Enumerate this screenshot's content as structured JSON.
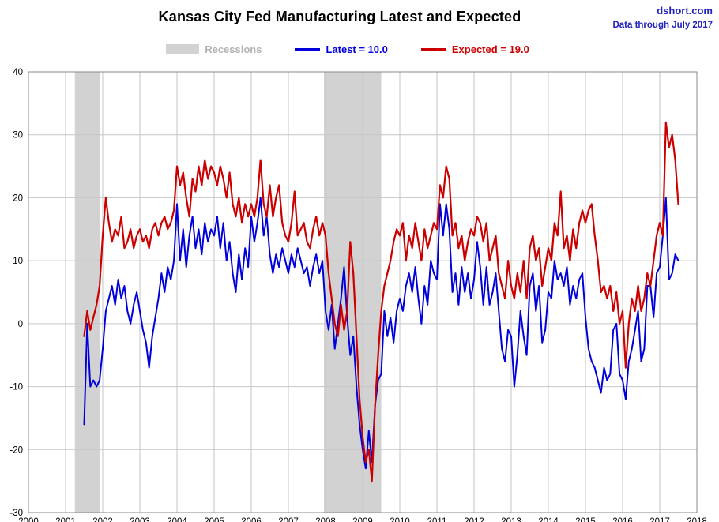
{
  "header": {
    "title": "Kansas City Fed Manufacturing Latest and Expected",
    "source": "dshort.com",
    "data_through": "Data through July 2017"
  },
  "legend": {
    "recessions_label": "Recessions",
    "latest_label": "Latest = 10.0",
    "expected_label": "Expected = 19.0"
  },
  "colors": {
    "latest": "#0000dd",
    "expected": "#cc0000",
    "recession": "#d2d2d2",
    "grid": "#c6c6c6",
    "plot_border": "#888888",
    "tick_text": "#000000"
  },
  "chart_data": {
    "type": "line",
    "title": "Kansas City Fed Manufacturing Latest and Expected",
    "xlabel": "",
    "ylabel": "",
    "xlim": [
      2000,
      2018
    ],
    "ylim": [
      -30,
      40
    ],
    "x_ticks": [
      2000,
      2001,
      2002,
      2003,
      2004,
      2005,
      2006,
      2007,
      2008,
      2009,
      2010,
      2011,
      2012,
      2013,
      2014,
      2015,
      2016,
      2017,
      2018
    ],
    "y_ticks": [
      -30,
      -20,
      -10,
      0,
      10,
      20,
      30,
      40
    ],
    "grid": true,
    "legend_position": "top",
    "x_start": 2001.5,
    "x_step": 0.0833333,
    "recession_bands": [
      [
        2001.25,
        2001.9167
      ],
      [
        2007.9583,
        2009.5
      ]
    ],
    "series": [
      {
        "name": "Latest",
        "final_value": 10.0,
        "color_key": "latest",
        "values": [
          -16,
          0,
          -10,
          -9,
          -10,
          -9,
          -4,
          2,
          4,
          6,
          3,
          7,
          4,
          6,
          2,
          0,
          3,
          5,
          2,
          -1,
          -3,
          -7,
          -2,
          1,
          4,
          8,
          5,
          9,
          7,
          10,
          19,
          10,
          15,
          9,
          14,
          17,
          12,
          15,
          11,
          16,
          13,
          15,
          14,
          17,
          12,
          16,
          10,
          13,
          8,
          5,
          11,
          7,
          12,
          9,
          17,
          13,
          16,
          20,
          14,
          17,
          11,
          8,
          11,
          9,
          12,
          10,
          8,
          11,
          9,
          12,
          10,
          8,
          9,
          6,
          9,
          11,
          8,
          10,
          2,
          -1,
          3,
          -4,
          0,
          4,
          9,
          1,
          -5,
          -2,
          -10,
          -16,
          -20,
          -23,
          -17,
          -22,
          -13,
          -9,
          -8,
          2,
          -2,
          1,
          -3,
          2,
          4,
          2,
          6,
          8,
          5,
          9,
          4,
          0,
          6,
          3,
          10,
          8,
          7,
          19,
          14,
          19,
          15,
          5,
          8,
          3,
          9,
          5,
          8,
          4,
          7,
          13,
          9,
          3,
          9,
          3,
          5,
          8,
          2,
          -4,
          -6,
          -1,
          -2,
          -10,
          -5,
          2,
          -2,
          -5,
          6,
          8,
          2,
          6,
          -3,
          -1,
          5,
          4,
          10,
          7,
          8,
          6,
          9,
          3,
          6,
          4,
          7,
          8,
          1,
          -4,
          -6,
          -7,
          -9,
          -11,
          -7,
          -9,
          -8,
          -1,
          0,
          -8,
          -9,
          -12,
          -6,
          -4,
          -1,
          2,
          -6,
          -4,
          6,
          6,
          1,
          8,
          9,
          14,
          20,
          7,
          8,
          11,
          10
        ]
      },
      {
        "name": "Expected",
        "final_value": 19.0,
        "color_key": "expected",
        "values": [
          -2,
          2,
          -1,
          1,
          3,
          6,
          14,
          20,
          16,
          13,
          15,
          14,
          17,
          12,
          13,
          15,
          12,
          14,
          15,
          13,
          14,
          12,
          15,
          16,
          14,
          16,
          17,
          15,
          16,
          18,
          25,
          22,
          24,
          20,
          17,
          23,
          21,
          25,
          22,
          26,
          23,
          25,
          24,
          22,
          25,
          23,
          20,
          24,
          19,
          17,
          20,
          16,
          19,
          17,
          19,
          17,
          20,
          26,
          19,
          17,
          22,
          17,
          20,
          22,
          16,
          14,
          13,
          16,
          21,
          14,
          15,
          16,
          13,
          12,
          15,
          17,
          14,
          16,
          14,
          8,
          4,
          0,
          -2,
          3,
          -1,
          2,
          13,
          8,
          -2,
          -12,
          -18,
          -22,
          -20,
          -25,
          -13,
          -5,
          2,
          6,
          8,
          10,
          13,
          15,
          14,
          16,
          10,
          14,
          12,
          16,
          13,
          10,
          15,
          12,
          14,
          16,
          15,
          22,
          20,
          25,
          23,
          14,
          16,
          12,
          14,
          10,
          13,
          15,
          14,
          17,
          16,
          13,
          16,
          10,
          12,
          14,
          8,
          6,
          4,
          10,
          6,
          4,
          8,
          5,
          10,
          4,
          12,
          14,
          10,
          12,
          6,
          9,
          12,
          10,
          16,
          14,
          21,
          12,
          14,
          10,
          15,
          12,
          16,
          18,
          16,
          18,
          19,
          14,
          10,
          5,
          6,
          4,
          6,
          2,
          5,
          0,
          2,
          -7,
          0,
          4,
          2,
          6,
          2,
          4,
          8,
          6,
          10,
          14,
          16,
          14,
          32,
          28,
          30,
          26,
          19
        ]
      }
    ]
  }
}
